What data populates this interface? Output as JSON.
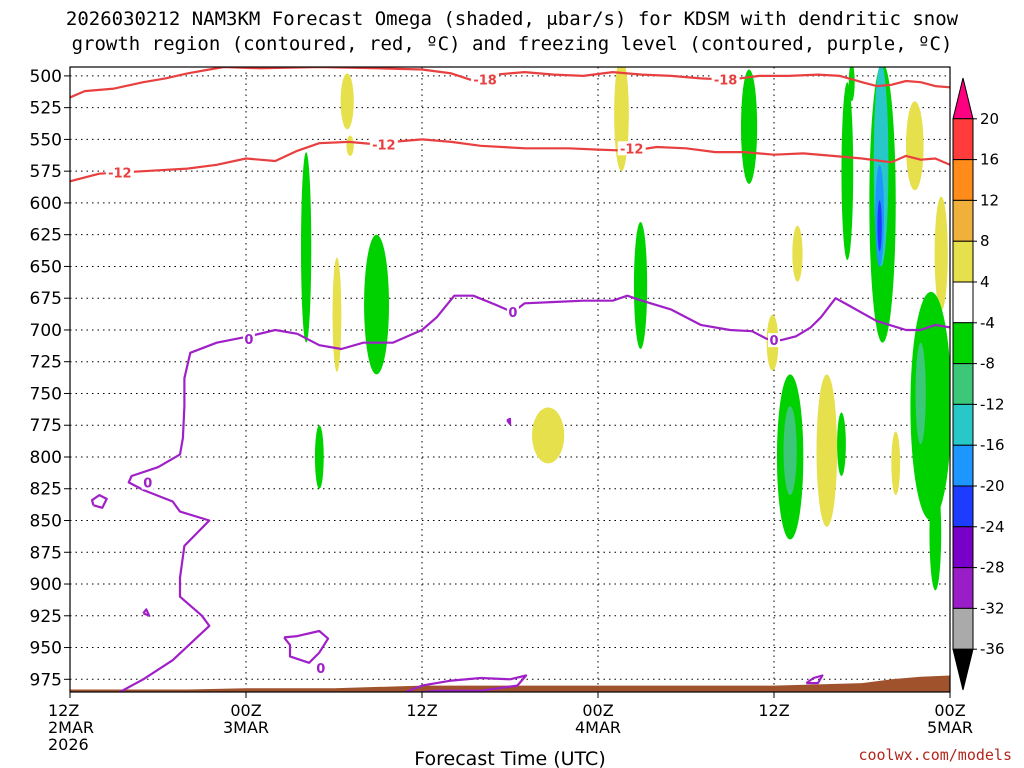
{
  "title": {
    "line1": "2026030212 NAM3KM Forecast Omega (shaded, μbar/s) for KDSM with dendritic snow",
    "line2": "growth region (contoured, red, ºC) and freezing level (contoured, purple, ºC)"
  },
  "credit": "coolwx.com/models",
  "chart_data": {
    "type": "heatmap",
    "title": "2026030212 NAM3KM Forecast Omega (shaded, μbar/s) for KDSM with dendritic snow growth region (contoured, red, ºC) and freezing level (contoured, purple, ºC)",
    "xlabel": "Forecast Time (UTC)",
    "ylabel": "",
    "x_unit": "forecast hour",
    "xlim": [
      0,
      60
    ],
    "ylim": [
      985,
      493
    ],
    "y_ticks": [
      500,
      525,
      550,
      575,
      600,
      625,
      650,
      675,
      700,
      725,
      750,
      775,
      800,
      825,
      850,
      875,
      900,
      925,
      950,
      975
    ],
    "x_ticks": [
      {
        "hour": 0,
        "lines": [
          "12Z",
          "2MAR",
          "2026"
        ]
      },
      {
        "hour": 12,
        "lines": [
          "00Z",
          "3MAR"
        ]
      },
      {
        "hour": 24,
        "lines": [
          "12Z"
        ]
      },
      {
        "hour": 36,
        "lines": [
          "00Z",
          "4MAR"
        ]
      },
      {
        "hour": 48,
        "lines": [
          "12Z"
        ]
      },
      {
        "hour": 60,
        "lines": [
          "00Z",
          "5MAR"
        ]
      }
    ],
    "grid": true,
    "colorbar": {
      "labels": [
        "20",
        "16",
        "12",
        "8",
        "4",
        "-4",
        "-8",
        "-12",
        "-16",
        "-20",
        "-24",
        "-28",
        "-32",
        "-36"
      ],
      "colors": [
        "#ff0080",
        "#ff3c3c",
        "#ff8c1a",
        "#f0b03c",
        "#e6e04c",
        "#ffffff",
        "#00d200",
        "#3cc878",
        "#28c8c8",
        "#1e96ff",
        "#1e3cff",
        "#7800c8",
        "#9a1ec8",
        "#aaaaaa",
        "#000000"
      ]
    },
    "omega_features": [
      {
        "x": 18.9,
        "p": 520,
        "rx": 0.45,
        "rp": 22,
        "omega": 6
      },
      {
        "x": 19.1,
        "p": 555,
        "rx": 0.25,
        "rp": 8,
        "omega": 6
      },
      {
        "x": 37.6,
        "p": 530,
        "rx": 0.5,
        "rp": 45,
        "omega": 6
      },
      {
        "x": 57.6,
        "p": 555,
        "rx": 0.6,
        "rp": 35,
        "omega": 6
      },
      {
        "x": 59.4,
        "p": 640,
        "rx": 0.45,
        "rp": 45,
        "omega": 6
      },
      {
        "x": 49.6,
        "p": 640,
        "rx": 0.35,
        "rp": 22,
        "omega": 6
      },
      {
        "x": 18.2,
        "p": 688,
        "rx": 0.3,
        "rp": 45,
        "omega": 6
      },
      {
        "x": 47.9,
        "p": 710,
        "rx": 0.4,
        "rp": 22,
        "omega": 6
      },
      {
        "x": 51.6,
        "p": 795,
        "rx": 0.7,
        "rp": 60,
        "omega": 6
      },
      {
        "x": 32.6,
        "p": 783,
        "rx": 1.1,
        "rp": 22,
        "omega": 6
      },
      {
        "x": 56.3,
        "p": 805,
        "rx": 0.3,
        "rp": 25,
        "omega": 6
      },
      {
        "x": 16.1,
        "p": 635,
        "rx": 0.35,
        "rp": 75,
        "omega": -6
      },
      {
        "x": 20.9,
        "p": 680,
        "rx": 0.85,
        "rp": 55,
        "omega": -6
      },
      {
        "x": 17.0,
        "p": 800,
        "rx": 0.3,
        "rp": 25,
        "omega": -6
      },
      {
        "x": 38.9,
        "p": 665,
        "rx": 0.45,
        "rp": 50,
        "omega": -6
      },
      {
        "x": 46.3,
        "p": 540,
        "rx": 0.55,
        "rp": 45,
        "omega": -6
      },
      {
        "x": 53.0,
        "p": 575,
        "rx": 0.4,
        "rp": 70,
        "omega": -6
      },
      {
        "x": 49.1,
        "p": 800,
        "rx": 0.9,
        "rp": 65,
        "omega": -6
      },
      {
        "x": 52.6,
        "p": 790,
        "rx": 0.3,
        "rp": 25,
        "omega": -6
      },
      {
        "x": 55.4,
        "p": 600,
        "rx": 0.9,
        "rp": 110,
        "omega": -6
      },
      {
        "x": 58.7,
        "p": 760,
        "rx": 1.4,
        "rp": 90,
        "omega": -6
      },
      {
        "x": 59.0,
        "p": 860,
        "rx": 0.4,
        "rp": 45,
        "omega": -6
      },
      {
        "x": 53.3,
        "p": 505,
        "rx": 0.2,
        "rp": 15,
        "omega": -6
      },
      {
        "x": 49.1,
        "p": 795,
        "rx": 0.45,
        "rp": 35,
        "omega": -10
      },
      {
        "x": 55.3,
        "p": 570,
        "rx": 0.5,
        "rp": 80,
        "omega": -14
      },
      {
        "x": 55.2,
        "p": 610,
        "rx": 0.3,
        "rp": 40,
        "omega": -18
      },
      {
        "x": 55.2,
        "p": 618,
        "rx": 0.15,
        "rp": 20,
        "omega": -22
      },
      {
        "x": 58.0,
        "p": 750,
        "rx": 0.35,
        "rp": 40,
        "omega": -10
      }
    ],
    "contours": [
      {
        "name": "-18",
        "color": "#e84040",
        "labels": [
          {
            "x": 28.3,
            "p": 503
          },
          {
            "x": 44.7,
            "p": 503
          }
        ],
        "points": [
          [
            0,
            517
          ],
          [
            1,
            512
          ],
          [
            3,
            510
          ],
          [
            5,
            505
          ],
          [
            6.5,
            502
          ],
          [
            8,
            498
          ],
          [
            9.5,
            495
          ],
          [
            10.5,
            493
          ],
          [
            13,
            494
          ],
          [
            17,
            493
          ],
          [
            21,
            494
          ],
          [
            24,
            495
          ],
          [
            26,
            498
          ],
          [
            27.3,
            503
          ],
          [
            29,
            499
          ],
          [
            31,
            497
          ],
          [
            33,
            499
          ],
          [
            35,
            500
          ],
          [
            37,
            497
          ],
          [
            39,
            499
          ],
          [
            41,
            500
          ],
          [
            43,
            502
          ],
          [
            45,
            503
          ],
          [
            47,
            500
          ],
          [
            49,
            500
          ],
          [
            51,
            499
          ],
          [
            52.5,
            500
          ],
          [
            54,
            505
          ],
          [
            55,
            508
          ],
          [
            56,
            507
          ],
          [
            57,
            504
          ],
          [
            58,
            505
          ],
          [
            59,
            508
          ],
          [
            60,
            509
          ]
        ]
      },
      {
        "name": "-12",
        "color": "#e84040",
        "labels": [
          {
            "x": 3.4,
            "p": 576
          },
          {
            "x": 21.4,
            "p": 554
          },
          {
            "x": 38.3,
            "p": 557
          }
        ],
        "points": [
          [
            0,
            583
          ],
          [
            2,
            577
          ],
          [
            5,
            575
          ],
          [
            8,
            573
          ],
          [
            10,
            570
          ],
          [
            12,
            565
          ],
          [
            14,
            567
          ],
          [
            15.5,
            559
          ],
          [
            17,
            553
          ],
          [
            19,
            552
          ],
          [
            21,
            554
          ],
          [
            22,
            552
          ],
          [
            24,
            550
          ],
          [
            26,
            552
          ],
          [
            28,
            555
          ],
          [
            31,
            557
          ],
          [
            34,
            557
          ],
          [
            36,
            558
          ],
          [
            38.3,
            559
          ],
          [
            40,
            556
          ],
          [
            42,
            557
          ],
          [
            44,
            560
          ],
          [
            46,
            560
          ],
          [
            48,
            562
          ],
          [
            50,
            561
          ],
          [
            52,
            563
          ],
          [
            54,
            565
          ],
          [
            56,
            568
          ],
          [
            57,
            563
          ],
          [
            58,
            566
          ],
          [
            59,
            565
          ],
          [
            60,
            570
          ]
        ]
      },
      {
        "name": "0",
        "color": "#a020c8",
        "labels": [
          {
            "x": 12.2,
            "p": 707
          },
          {
            "x": 5.3,
            "p": 820
          },
          {
            "x": 17.1,
            "p": 966
          },
          {
            "x": 30.2,
            "p": 686
          },
          {
            "x": 48.0,
            "p": 708
          }
        ],
        "points": [
          [
            3.4,
            985
          ],
          [
            5,
            975
          ],
          [
            7,
            960
          ],
          [
            9.5,
            933
          ],
          [
            9,
            925
          ],
          [
            7.5,
            910
          ],
          [
            7.5,
            895
          ],
          [
            7.8,
            870
          ],
          [
            9.5,
            850
          ],
          [
            7.5,
            843
          ],
          [
            7,
            835
          ],
          [
            5,
            826
          ],
          [
            4,
            820
          ],
          [
            4.2,
            815
          ],
          [
            6,
            808
          ],
          [
            7.5,
            798
          ],
          [
            7.7,
            785
          ],
          [
            7.8,
            760
          ],
          [
            7.8,
            738
          ],
          [
            8.2,
            718
          ],
          [
            10,
            710
          ],
          [
            12.2,
            705
          ],
          [
            14,
            700
          ],
          [
            15.5,
            703
          ],
          [
            17,
            712
          ],
          [
            18.5,
            715
          ],
          [
            20,
            710
          ],
          [
            22,
            710
          ],
          [
            24,
            700
          ],
          [
            25,
            690
          ],
          [
            26.2,
            673
          ],
          [
            27.5,
            673
          ],
          [
            29,
            680
          ],
          [
            30.2,
            686
          ],
          [
            31,
            679
          ],
          [
            33,
            678
          ],
          [
            35,
            677
          ],
          [
            37,
            677
          ],
          [
            38,
            673
          ],
          [
            39,
            677
          ],
          [
            41,
            684
          ],
          [
            43,
            696
          ],
          [
            45,
            700
          ],
          [
            46.5,
            701
          ],
          [
            47.5,
            707
          ],
          [
            48.5,
            708
          ],
          [
            49.5,
            705
          ],
          [
            50.5,
            698
          ],
          [
            51.2,
            690
          ],
          [
            52.2,
            675
          ],
          [
            53,
            680
          ],
          [
            55,
            693
          ],
          [
            57,
            700
          ],
          [
            58,
            700
          ],
          [
            59,
            696
          ],
          [
            60,
            698
          ]
        ]
      }
    ],
    "freezing_fragments": [
      {
        "points": [
          [
            1.6,
            838
          ],
          [
            2.2,
            840
          ],
          [
            2.5,
            833
          ],
          [
            2.0,
            830
          ],
          [
            1.5,
            834
          ],
          [
            1.6,
            838
          ]
        ]
      },
      {
        "points": [
          [
            5.0,
            923
          ],
          [
            5.4,
            925
          ],
          [
            5.2,
            920
          ],
          [
            5.0,
            923
          ]
        ]
      },
      {
        "points": [
          [
            14.6,
            942
          ],
          [
            15.5,
            941
          ],
          [
            17.0,
            937
          ],
          [
            17.6,
            943
          ],
          [
            17.0,
            954
          ],
          [
            16.3,
            962
          ],
          [
            15.0,
            957
          ],
          [
            15.0,
            948
          ],
          [
            14.6,
            942
          ]
        ]
      },
      {
        "points": [
          [
            22.5,
            987
          ],
          [
            24,
            980
          ],
          [
            26,
            976
          ],
          [
            28,
            974
          ],
          [
            30,
            975
          ],
          [
            31.1,
            972
          ],
          [
            30.5,
            980
          ],
          [
            28,
            984
          ],
          [
            25,
            984
          ],
          [
            22.5,
            987
          ]
        ]
      },
      {
        "points": [
          [
            29.8,
            771
          ],
          [
            30.0,
            774
          ],
          [
            30.0,
            770
          ],
          [
            29.8,
            771
          ]
        ]
      },
      {
        "points": [
          [
            50.2,
            978
          ],
          [
            51.0,
            978
          ],
          [
            51.3,
            972
          ],
          [
            50.7,
            974
          ],
          [
            50.2,
            978
          ]
        ]
      }
    ],
    "terrain": {
      "color": "#a0522d",
      "points": [
        [
          0,
          983
        ],
        [
          3,
          983
        ],
        [
          8,
          983
        ],
        [
          12,
          982
        ],
        [
          18,
          982
        ],
        [
          24,
          980
        ],
        [
          30,
          980
        ],
        [
          36,
          980
        ],
        [
          42,
          980
        ],
        [
          48,
          980
        ],
        [
          54,
          978
        ],
        [
          56,
          975
        ],
        [
          58,
          973
        ],
        [
          60,
          972
        ]
      ]
    }
  }
}
